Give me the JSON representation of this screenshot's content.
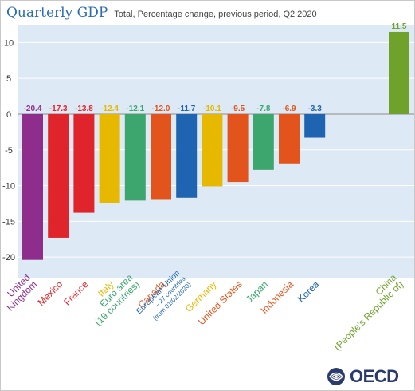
{
  "chart_data": {
    "type": "bar",
    "title": "Quarterly GDP",
    "subtitle": "Total, Percentage change, previous period, Q2 2020",
    "xlabel": "",
    "ylabel": "",
    "ylim": [
      -23,
      12.5
    ],
    "yticks": [
      10,
      5,
      0,
      -5,
      -10,
      -15,
      -20
    ],
    "grid": true,
    "categories": [
      {
        "lines": [
          "United",
          "Kingdom"
        ],
        "value": -20.4,
        "label": "-20.4",
        "color": "#8e2d8c"
      },
      {
        "lines": [
          "Mexico"
        ],
        "value": -17.3,
        "label": "-17.3",
        "color": "#e0242b"
      },
      {
        "lines": [
          "France"
        ],
        "value": -13.8,
        "label": "-13.8",
        "color": "#e0242b"
      },
      {
        "lines": [
          "Italy"
        ],
        "value": -12.4,
        "label": "-12.4",
        "color": "#e6b800"
      },
      {
        "lines": [
          "Euro area",
          "(19 countries)"
        ],
        "value": -12.1,
        "label": "-12.1",
        "color": "#3da66e"
      },
      {
        "lines": [
          "Canada"
        ],
        "value": -12.0,
        "label": "-12.0",
        "color": "#e2541c"
      },
      {
        "lines": [
          "European Union",
          "– 27 countries",
          "(from 01/02/2020)"
        ],
        "value": -11.7,
        "label": "-11.7",
        "color": "#1f64b0"
      },
      {
        "lines": [
          "Germany"
        ],
        "value": -10.1,
        "label": "-10.1",
        "color": "#e6b800"
      },
      {
        "lines": [
          "United States"
        ],
        "value": -9.5,
        "label": "-9.5",
        "color": "#e2541c"
      },
      {
        "lines": [
          "Japan"
        ],
        "value": -7.8,
        "label": "-7.8",
        "color": "#3da66e"
      },
      {
        "lines": [
          "Indonesia"
        ],
        "value": -6.9,
        "label": "-6.9",
        "color": "#e2541c"
      },
      {
        "lines": [
          "Korea"
        ],
        "value": -3.3,
        "label": "-3.3",
        "color": "#1f64b0"
      },
      {
        "lines": [
          "China",
          "(People's Republic of)"
        ],
        "value": 11.5,
        "label": "11.5",
        "color": "#6fa22a"
      }
    ]
  },
  "logo": {
    "text": "OECD"
  }
}
